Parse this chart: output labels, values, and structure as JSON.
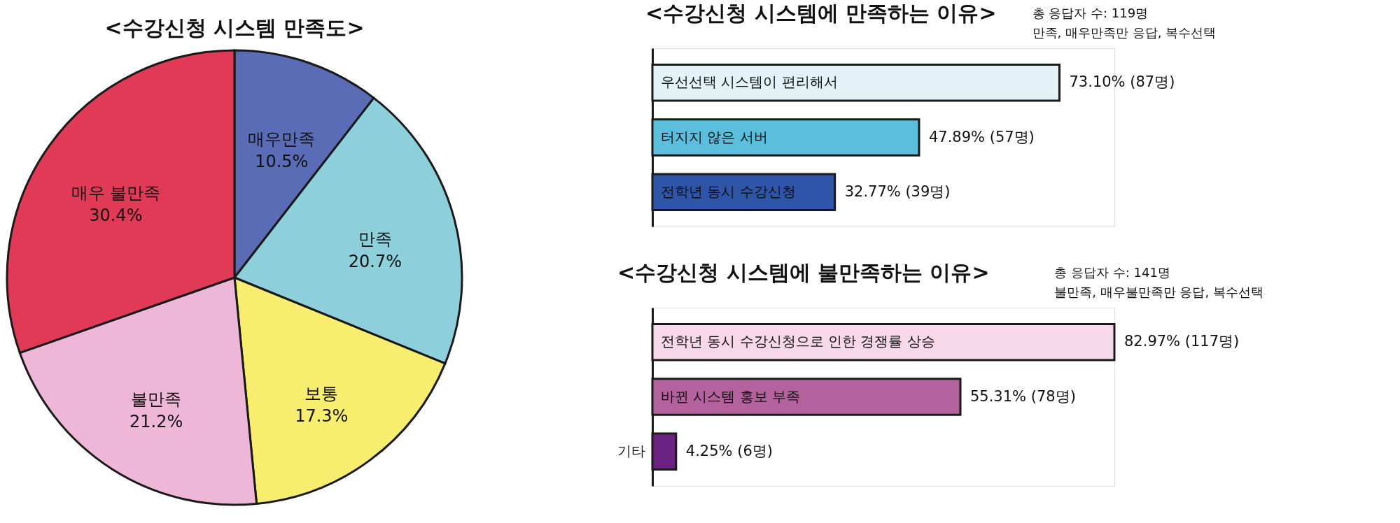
{
  "chart_data": [
    {
      "type": "pie",
      "title": "<수강신청 시스템 만족도>",
      "categories": [
        "매우만족",
        "만족",
        "보통",
        "불만족",
        "매우 불만족"
      ],
      "values": [
        10.5,
        20.7,
        17.3,
        21.2,
        30.4
      ],
      "colors": [
        "#5a6cb6",
        "#8ecfdc",
        "#f7ed6e",
        "#efb7d7",
        "#e13a56"
      ],
      "value_labels": [
        "10.5%",
        "20.7%",
        "17.3%",
        "21.2%",
        "30.4%"
      ]
    },
    {
      "type": "bar",
      "orientation": "horizontal",
      "title": "<수강신청 시스템에 만족하는 이유>",
      "subtitle": "총 응답자 수: 119명",
      "annotations": [
        "만족, 매우만족만 응답, 복수선택"
      ],
      "categories": [
        "우선선택 시스템이 편리해서",
        "터지지 않은 서버",
        "전학년 동시 수강신청"
      ],
      "values": [
        73.1,
        47.89,
        32.77
      ],
      "colors": [
        "#e2f2f7",
        "#5bbedc",
        "#2e55a8"
      ],
      "value_labels": [
        "73.10% (87명)",
        "47.89% (57명)",
        "32.77% (39명)"
      ]
    },
    {
      "type": "bar",
      "orientation": "horizontal",
      "title": "<수강신청 시스템에 불만족하는 이유>",
      "subtitle": "총 응답자 수: 141명",
      "annotations": [
        "불만족, 매우불만족만 응답, 복수선택"
      ],
      "categories": [
        "전학년 동시 수강신청으로 인한 경쟁률 상승",
        "바뀐 시스템 홍보 부족",
        "기타"
      ],
      "values": [
        82.97,
        55.31,
        4.25
      ],
      "colors": [
        "#f6d8e9",
        "#b3629e",
        "#6b2283"
      ],
      "value_labels": [
        "82.97% (117명)",
        "55.31% (78명)",
        "4.25% (6명)"
      ]
    }
  ]
}
